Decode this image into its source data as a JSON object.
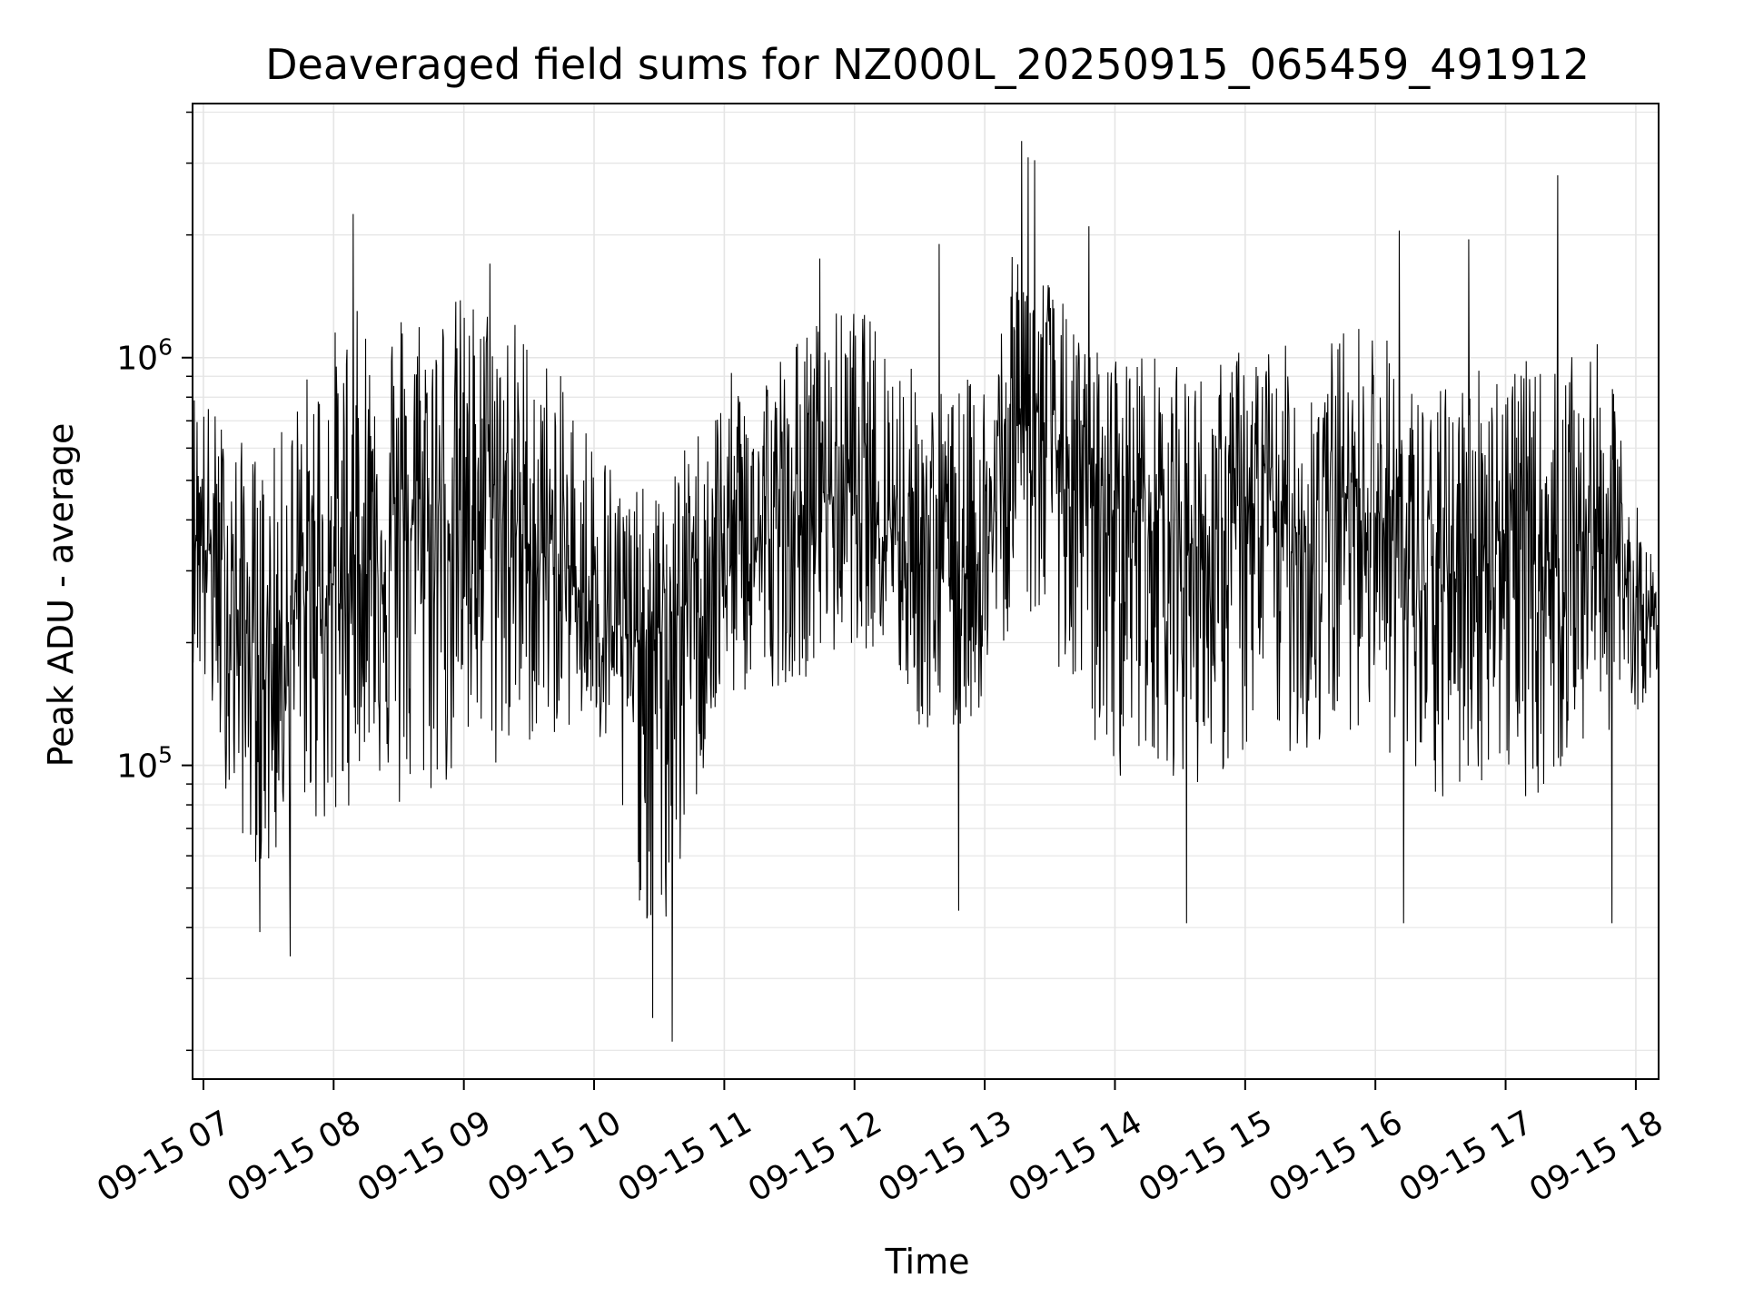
{
  "chart_data": {
    "type": "line",
    "title": "Deaveraged field sums for NZ000L_20250915_065459_491912",
    "xlabel": "Time",
    "ylabel": "Peak ADU - average",
    "yscale": "log",
    "xlim": [
      "2025-09-15T06:55:00",
      "2025-09-15T18:10:30"
    ],
    "ylim": [
      17000,
      4200000
    ],
    "grid": true,
    "line_color": "#000000",
    "grid_color": "#e5e5e5",
    "x_ticks": [
      {
        "value": "2025-09-15T07:00:00",
        "label": "09-15 07"
      },
      {
        "value": "2025-09-15T08:00:00",
        "label": "09-15 08"
      },
      {
        "value": "2025-09-15T09:00:00",
        "label": "09-15 09"
      },
      {
        "value": "2025-09-15T10:00:00",
        "label": "09-15 10"
      },
      {
        "value": "2025-09-15T11:00:00",
        "label": "09-15 11"
      },
      {
        "value": "2025-09-15T12:00:00",
        "label": "09-15 12"
      },
      {
        "value": "2025-09-15T13:00:00",
        "label": "09-15 13"
      },
      {
        "value": "2025-09-15T14:00:00",
        "label": "09-15 14"
      },
      {
        "value": "2025-09-15T15:00:00",
        "label": "09-15 15"
      },
      {
        "value": "2025-09-15T16:00:00",
        "label": "09-15 16"
      },
      {
        "value": "2025-09-15T17:00:00",
        "label": "09-15 17"
      },
      {
        "value": "2025-09-15T18:00:00",
        "label": "09-15 18"
      }
    ],
    "y_ticks": [
      {
        "value": 100000,
        "base": "10",
        "exp": "5"
      },
      {
        "value": 1000000,
        "base": "10",
        "exp": "6"
      }
    ],
    "series": [
      {
        "x": [
          "2025-09-15T06:55:00",
          "2025-09-15T07:15:00",
          "2025-09-15T07:30:00",
          "2025-09-15T07:45:00",
          "2025-09-15T08:00:00",
          "2025-09-15T08:15:00",
          "2025-09-15T08:30:00",
          "2025-09-15T08:45:00",
          "2025-09-15T09:00:00",
          "2025-09-15T09:15:00",
          "2025-09-15T09:30:00",
          "2025-09-15T09:45:00",
          "2025-09-15T10:00:00",
          "2025-09-15T10:15:00",
          "2025-09-15T10:30:00",
          "2025-09-15T10:45:00",
          "2025-09-15T11:00:00",
          "2025-09-15T11:15:00",
          "2025-09-15T11:30:00",
          "2025-09-15T11:45:00",
          "2025-09-15T12:00:00",
          "2025-09-15T12:15:00",
          "2025-09-15T12:30:00",
          "2025-09-15T12:45:00",
          "2025-09-15T13:00:00",
          "2025-09-15T13:15:00",
          "2025-09-15T13:30:00",
          "2025-09-15T13:45:00",
          "2025-09-15T14:00:00",
          "2025-09-15T14:15:00",
          "2025-09-15T14:30:00",
          "2025-09-15T14:45:00",
          "2025-09-15T15:00:00",
          "2025-09-15T15:15:00",
          "2025-09-15T15:30:00",
          "2025-09-15T15:45:00",
          "2025-09-15T16:00:00",
          "2025-09-15T16:15:00",
          "2025-09-15T16:30:00",
          "2025-09-15T16:45:00",
          "2025-09-15T17:00:00",
          "2025-09-15T17:15:00",
          "2025-09-15T17:30:00",
          "2025-09-15T17:45:00",
          "2025-09-15T18:00:00",
          "2025-09-15T18:10:00"
        ],
        "center": [
          420000,
          230000,
          180000,
          250000,
          280000,
          320000,
          380000,
          400000,
          420000,
          420000,
          350000,
          300000,
          250000,
          200000,
          210000,
          260000,
          330000,
          350000,
          380000,
          460000,
          500000,
          420000,
          330000,
          300000,
          320000,
          700000,
          650000,
          430000,
          420000,
          430000,
          380000,
          320000,
          420000,
          400000,
          360000,
          460000,
          450000,
          280000,
          260000,
          350000,
          380000,
          300000,
          350000,
          380000,
          250000,
          210000
        ],
        "low": [
          180000,
          70000,
          50000,
          80000,
          60000,
          110000,
          70000,
          80000,
          90000,
          90000,
          110000,
          120000,
          120000,
          60000,
          30000,
          70000,
          140000,
          150000,
          160000,
          170000,
          200000,
          180000,
          120000,
          110000,
          140000,
          250000,
          200000,
          120000,
          90000,
          110000,
          90000,
          90000,
          100000,
          110000,
          100000,
          120000,
          130000,
          80000,
          75000,
          90000,
          90000,
          80000,
          100000,
          120000,
          130000,
          170000
        ],
        "high": [
          900000,
          650000,
          560000,
          900000,
          1200000,
          1380000,
          1420000,
          1440000,
          1450000,
          1420000,
          1200000,
          900000,
          700000,
          500000,
          460000,
          650000,
          900000,
          1000000,
          1100000,
          1300000,
          1350000,
          1200000,
          900000,
          850000,
          950000,
          2000000,
          1600000,
          1100000,
          1050000,
          1050000,
          950000,
          950000,
          1100000,
          1100000,
          1000000,
          1200000,
          1300000,
          900000,
          850000,
          1000000,
          1050000,
          950000,
          1000000,
          1100000,
          450000,
          300000
        ]
      }
    ],
    "spikes": [
      {
        "x": "2025-09-15T08:09:00",
        "y": 2250000
      },
      {
        "x": "2025-09-15T12:39:00",
        "y": 1900000
      },
      {
        "x": "2025-09-15T13:17:00",
        "y": 3400000
      },
      {
        "x": "2025-09-15T13:20:00",
        "y": 3100000
      },
      {
        "x": "2025-09-15T13:23:00",
        "y": 3050000
      },
      {
        "x": "2025-09-15T13:48:00",
        "y": 2100000
      },
      {
        "x": "2025-09-15T16:11:00",
        "y": 2050000
      },
      {
        "x": "2025-09-15T16:43:00",
        "y": 1950000
      },
      {
        "x": "2025-09-15T17:24:00",
        "y": 2800000
      },
      {
        "x": "2025-09-15T11:44:00",
        "y": 1750000
      },
      {
        "x": "2025-09-15T09:12:00",
        "y": 1700000
      },
      {
        "x": "2025-09-15T07:26:00",
        "y": 39000
      },
      {
        "x": "2025-09-15T07:40:00",
        "y": 34000
      },
      {
        "x": "2025-09-15T10:27:00",
        "y": 24000
      },
      {
        "x": "2025-09-15T10:36:00",
        "y": 21000
      },
      {
        "x": "2025-09-15T12:48:00",
        "y": 44000
      },
      {
        "x": "2025-09-15T14:33:00",
        "y": 41000
      },
      {
        "x": "2025-09-15T16:13:00",
        "y": 41000
      },
      {
        "x": "2025-09-15T17:49:00",
        "y": 41000
      }
    ]
  }
}
